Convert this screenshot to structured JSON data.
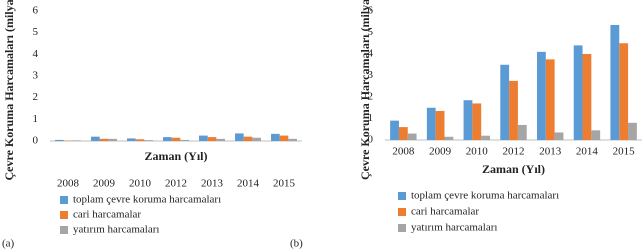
{
  "chart_data": [
    {
      "type": "bar",
      "panel_label": "(a)",
      "xlabel": "Zaman (Yıl)",
      "ylabel": "Çevre Koruma Harcamaları (milyar TL)",
      "categories": [
        "2008",
        "2009",
        "2010",
        "2012",
        "2013",
        "2014",
        "2015"
      ],
      "series": [
        {
          "name": "toplam çevre koruma harcamaları",
          "color": "#5b9bd5",
          "values": [
            0.05,
            0.2,
            0.12,
            0.18,
            0.25,
            0.35,
            0.33
          ]
        },
        {
          "name": "cari harcamalar",
          "color": "#ed7d31",
          "values": [
            0.02,
            0.1,
            0.08,
            0.15,
            0.18,
            0.2,
            0.25
          ]
        },
        {
          "name": "yatırım harcamaları",
          "color": "#a5a5a5",
          "values": [
            0.03,
            0.1,
            0.04,
            0.05,
            0.1,
            0.15,
            0.1
          ]
        }
      ],
      "ylim": [
        0,
        6
      ],
      "yticks": [
        0,
        1,
        2,
        3,
        4,
        5,
        6
      ]
    },
    {
      "type": "bar",
      "panel_label": "(b)",
      "xlabel": "Zaman (Yıl)",
      "ylabel": "Çevre Koruma Harcamaları (milyar TL)",
      "categories": [
        "2008",
        "2009",
        "2010",
        "2012",
        "2013",
        "2014",
        "2015"
      ],
      "series": [
        {
          "name": "toplam çevre koruma harcamaları",
          "color": "#5b9bd5",
          "values": [
            0.9,
            1.5,
            1.85,
            3.5,
            4.1,
            4.4,
            5.35
          ]
        },
        {
          "name": "cari harcamalar",
          "color": "#ed7d31",
          "values": [
            0.6,
            1.35,
            1.7,
            2.75,
            3.75,
            4.0,
            4.5
          ]
        },
        {
          "name": "yatırım harcamaları",
          "color": "#a5a5a5",
          "values": [
            0.3,
            0.15,
            0.2,
            0.7,
            0.35,
            0.45,
            0.8
          ]
        }
      ],
      "ylim": [
        0,
        6
      ],
      "yticks": [
        0,
        1,
        2,
        3,
        4,
        5,
        6
      ]
    }
  ]
}
